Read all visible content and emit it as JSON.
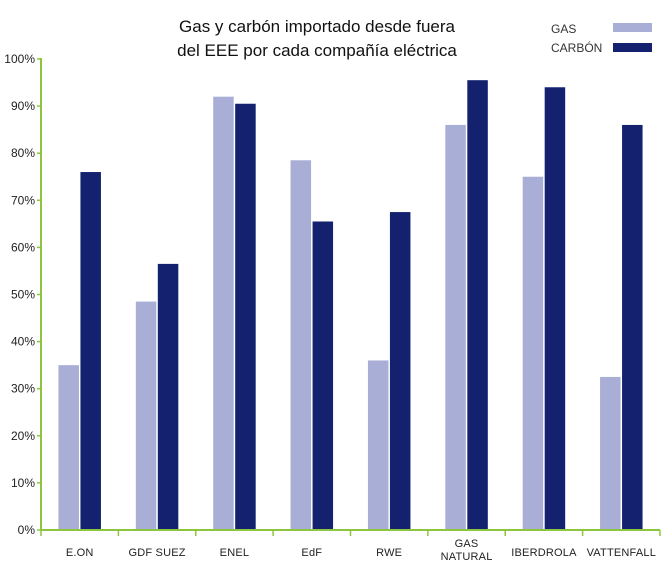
{
  "chart_data": {
    "type": "bar",
    "title_lines": [
      "Gas y carbón importado desde fuera",
      "del EEE por cada compañía eléctrica"
    ],
    "categories": [
      [
        "E.ON"
      ],
      [
        "GDF SUEZ"
      ],
      [
        "ENEL"
      ],
      [
        "EdF"
      ],
      [
        "RWE"
      ],
      [
        "GAS",
        "NATURAL"
      ],
      [
        "IBERDROLA"
      ],
      [
        "VATTENFALL"
      ]
    ],
    "series": [
      {
        "name": "GAS",
        "color": "#a9aed6",
        "values": [
          35,
          48.5,
          92,
          78.5,
          36,
          86,
          75,
          32.5
        ]
      },
      {
        "name": "CARBÓN",
        "color": "#13216e",
        "values": [
          76,
          56.5,
          90.5,
          65.5,
          67.5,
          95.5,
          94,
          86
        ]
      }
    ],
    "ylim": [
      0,
      100
    ],
    "yticks": [
      "0%",
      "10%",
      "20%",
      "30%",
      "40%",
      "50%",
      "60%",
      "70%",
      "80%",
      "90%",
      "100%"
    ],
    "axis_color": "#8cc63f",
    "grid": false,
    "legend_position": "top-right"
  }
}
